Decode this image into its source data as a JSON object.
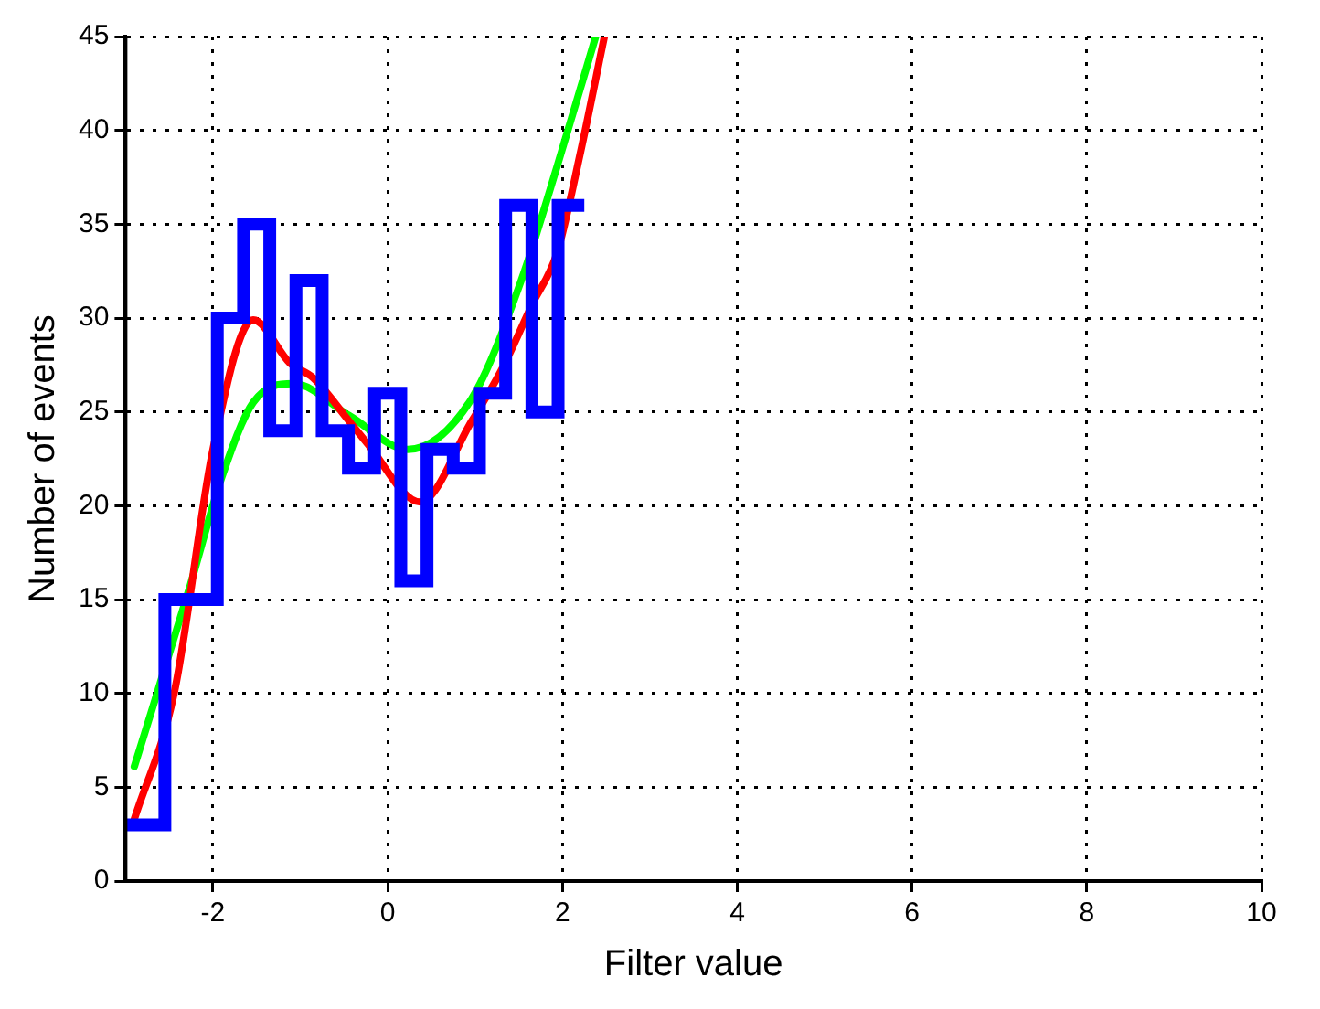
{
  "chart_data": {
    "type": "histogram",
    "xlabel": "Filter value",
    "ylabel": "Number of events",
    "xlim": [
      -3,
      10
    ],
    "xticks": [
      -2,
      0,
      2,
      4,
      6,
      8,
      10
    ],
    "ylim": [
      0,
      45
    ],
    "yticks": [
      0,
      5,
      10,
      15,
      20,
      25,
      30,
      35,
      40,
      45
    ],
    "grid": true,
    "legend": false,
    "series": [
      {
        "type": "histogram",
        "color": "#0000ff",
        "bins": [
          -3,
          -2.55,
          -2.25,
          -1.95,
          -1.65,
          -1.35,
          -1.05,
          -0.75,
          -0.45,
          -0.15,
          0.15,
          0.45,
          0.75,
          1.05,
          1.35,
          1.65,
          1.95,
          2.25
        ],
        "values": [
          3,
          15,
          15,
          30,
          35,
          24,
          32,
          24,
          22,
          26,
          16,
          23,
          22,
          26,
          36,
          25,
          36
        ]
      },
      {
        "type": "line",
        "color": "#ff0000",
        "x": [
          -2.9,
          -2.44,
          -2,
          -1.54,
          -1.12,
          -0.85,
          -0.44,
          -0.23,
          0.37,
          0.96,
          1.31,
          1.65,
          1.94,
          2.2,
          2.48
        ],
        "values": [
          3.3,
          10.1,
          23,
          29.9,
          27.6,
          26.8,
          24.5,
          23.3,
          20.2,
          24.5,
          27.3,
          30.7,
          33.5,
          38.7,
          45
        ]
      },
      {
        "type": "line",
        "color": "#00ff00",
        "x": [
          -2.9,
          -2.27,
          -1.9,
          -1.54,
          -1.08,
          -0.44,
          0.23,
          0.96,
          1.52,
          1.94,
          2.38
        ],
        "values": [
          6.1,
          15.6,
          21.5,
          25.5,
          26.5,
          24.8,
          23,
          25.7,
          31.9,
          38.1,
          45
        ]
      }
    ]
  }
}
